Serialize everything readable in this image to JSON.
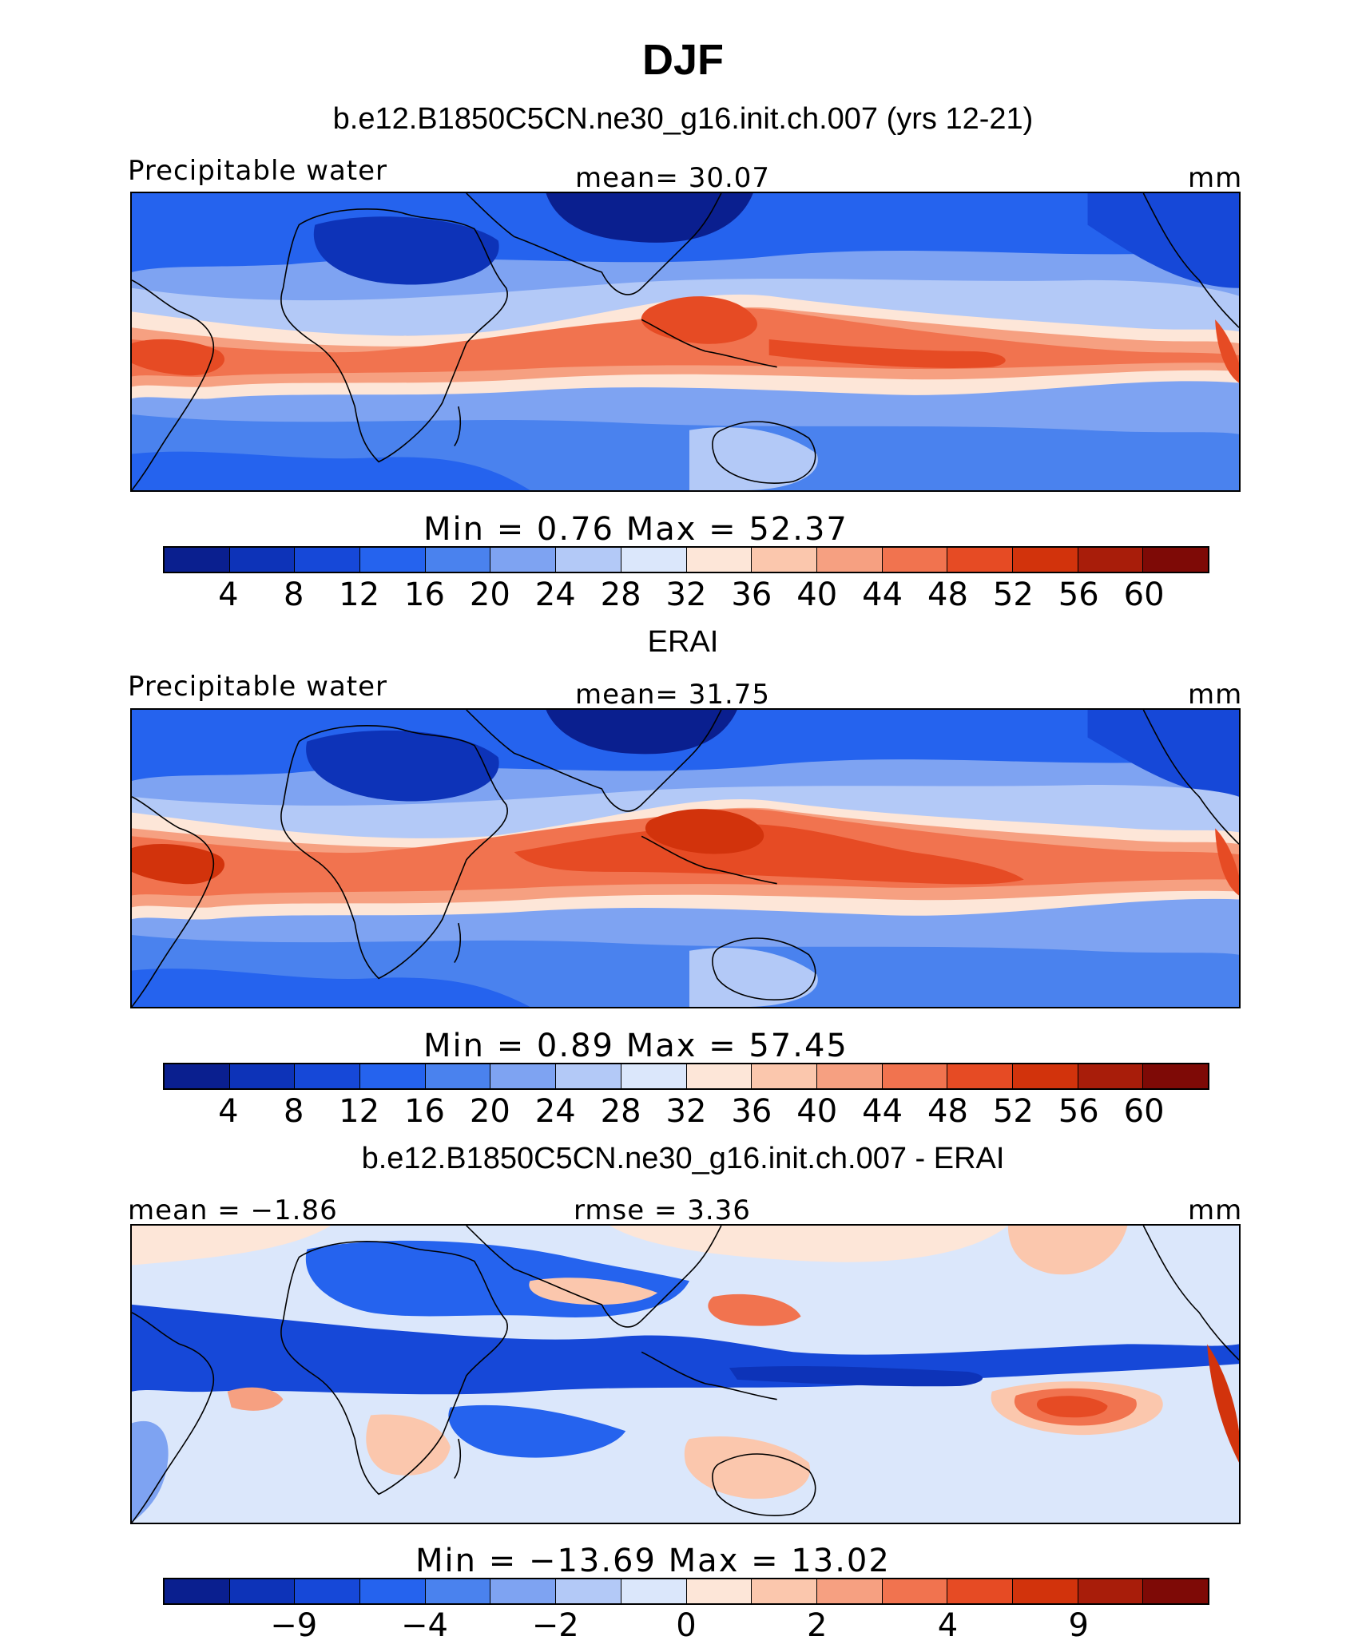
{
  "title": "DJF",
  "chart_data": [
    {
      "type": "heatmap",
      "title": "b.e12.B1850C5CN.ne30_g16.init.ch.007 (yrs 12-21)",
      "left_label": "Precipitable water",
      "center_label": "mean=   30.07",
      "units": "mm",
      "mean": 30.07,
      "min": 0.76,
      "max": 52.37,
      "minmax_text": "Min  =     0.76  Max  =    52.37",
      "colorbar_levels": [
        4,
        8,
        12,
        16,
        20,
        24,
        28,
        32,
        36,
        40,
        44,
        48,
        52,
        56,
        60
      ],
      "colorbar_tick_labels": [
        "4",
        "8",
        "12",
        "16",
        "20",
        "24",
        "28",
        "32",
        "36",
        "40",
        "44",
        "48",
        "52",
        "56",
        "60"
      ]
    },
    {
      "type": "heatmap",
      "title": "ERAI",
      "left_label": "Precipitable water",
      "center_label": "mean=   31.75",
      "units": "mm",
      "mean": 31.75,
      "min": 0.89,
      "max": 57.45,
      "minmax_text": "Min  =     0.89  Max  =    57.45",
      "colorbar_levels": [
        4,
        8,
        12,
        16,
        20,
        24,
        28,
        32,
        36,
        40,
        44,
        48,
        52,
        56,
        60
      ],
      "colorbar_tick_labels": [
        "4",
        "8",
        "12",
        "16",
        "20",
        "24",
        "28",
        "32",
        "36",
        "40",
        "44",
        "48",
        "52",
        "56",
        "60"
      ]
    },
    {
      "type": "heatmap",
      "title": "b.e12.B1850C5CN.ne30_g16.init.ch.007 - ERAI",
      "left_label": "mean =  −1.86",
      "center_label": "rmse  =     3.36",
      "units": "mm",
      "mean": -1.86,
      "rmse": 3.36,
      "min": -13.69,
      "max": 13.02,
      "minmax_text": "Min  =  −13.69  Max  =    13.02",
      "colorbar_tick_labels": [
        "−9",
        "−4",
        "−2",
        "0",
        "2",
        "4",
        "9"
      ]
    }
  ],
  "colors": [
    "#0a1f8f",
    "#0d33b8",
    "#1648d8",
    "#2563ee",
    "#4a82ee",
    "#7ea3f2",
    "#b3c9f7",
    "#dbe7fb",
    "#fde6d8",
    "#fbc7ad",
    "#f6a081",
    "#f1734f",
    "#e64b24",
    "#d2330c",
    "#a81d0a",
    "#7e0a06"
  ]
}
